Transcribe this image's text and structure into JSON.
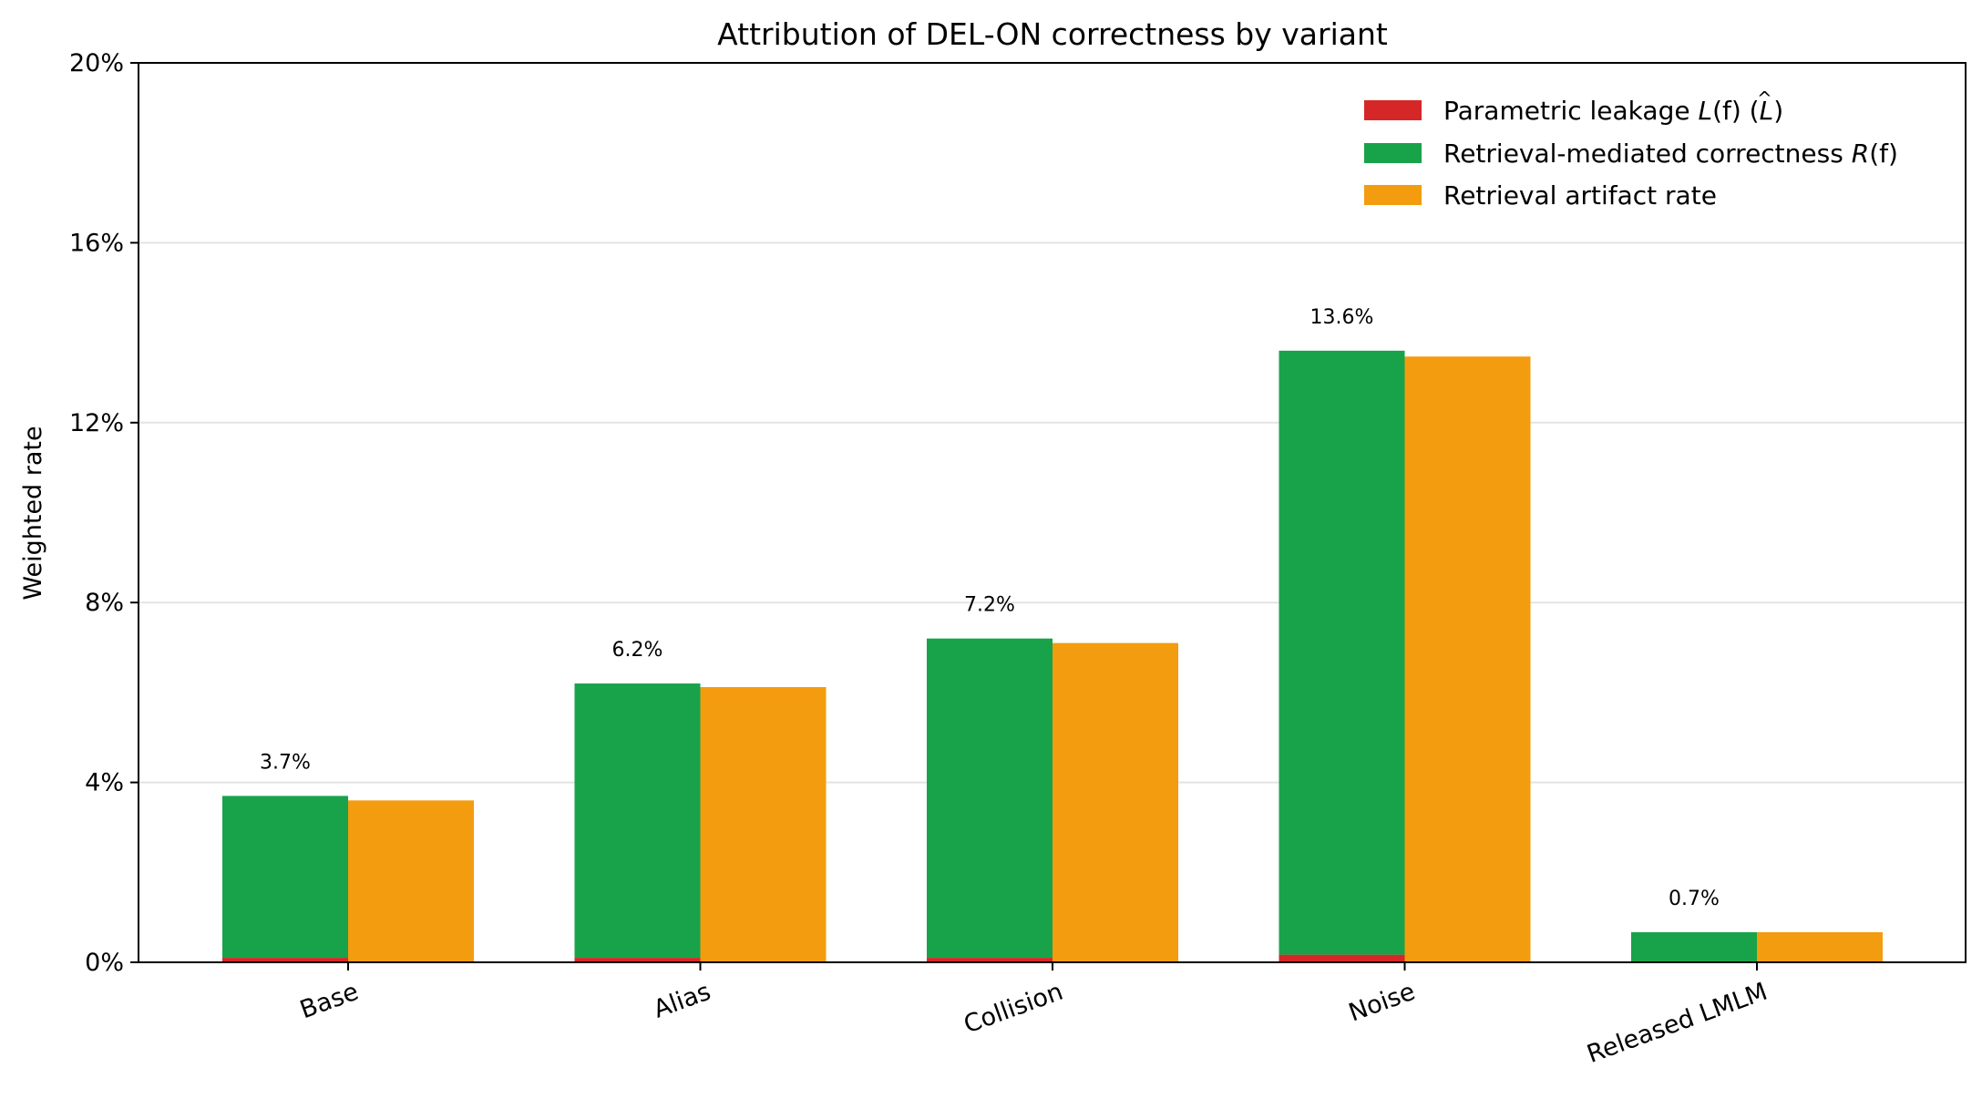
{
  "chart_data": {
    "type": "bar",
    "title": "Attribution of DEL-ON correctness by variant",
    "xlabel": "",
    "ylabel": "Weighted rate",
    "ylim": [
      0,
      20
    ],
    "y_unit": "%",
    "yticks": [
      0,
      4,
      8,
      12,
      16,
      20
    ],
    "ytick_labels": [
      "0%",
      "4%",
      "8%",
      "12%",
      "16%",
      "20%"
    ],
    "grid": "horizontal",
    "legend_position": "top-right",
    "categories": [
      "Base",
      "Alias",
      "Collision",
      "Noise",
      "Released LMLM"
    ],
    "stacked_bar_series": [
      {
        "key": "leakage",
        "name": "Parametric leakage L(f) (L̂)",
        "color": "#d62728",
        "values": [
          0.1,
          0.1,
          0.1,
          0.17,
          0.0
        ]
      },
      {
        "key": "retrieval",
        "name": "Retrieval-mediated correctness R(f)",
        "color": "#18a34a",
        "values": [
          3.6,
          6.1,
          7.1,
          13.43,
          0.67
        ]
      }
    ],
    "artifact_series": {
      "key": "artifact",
      "name": "Retrieval artifact rate",
      "color": "#f39c0f",
      "values": [
        3.6,
        6.12,
        7.1,
        13.47,
        0.67
      ]
    },
    "data_labels": [
      "3.7%",
      "6.2%",
      "7.2%",
      "13.6%",
      "0.7%"
    ],
    "legend": {
      "leakage": {
        "prefix": "Parametric leakage ",
        "sym": "L",
        "arg": "(f) (",
        "hat": "L",
        "suffix": ")"
      },
      "retrieval": {
        "prefix": "Retrieval-mediated correctness ",
        "sym": "R",
        "arg": "(f)"
      },
      "artifact": {
        "text": "Retrieval artifact rate"
      }
    }
  }
}
